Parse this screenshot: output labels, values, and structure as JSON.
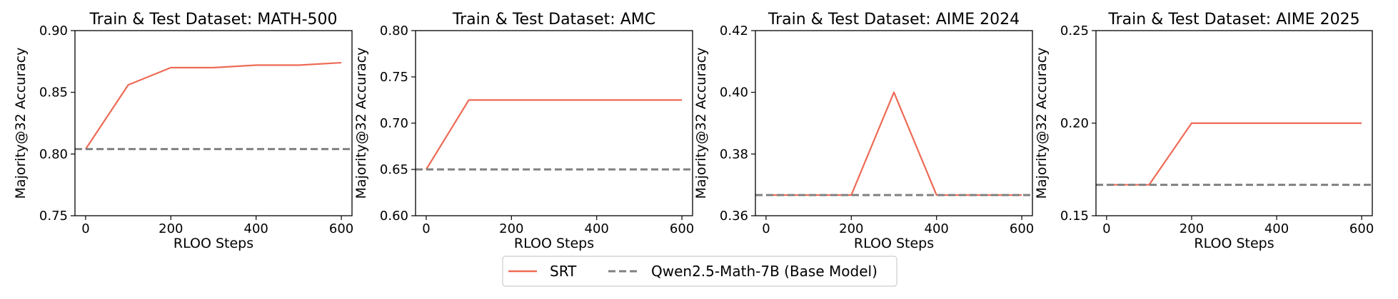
{
  "colors": {
    "srt": "#ee6a55",
    "baseline": "#808080",
    "axis": "#000000"
  },
  "legend": {
    "srt_label": "SRT",
    "baseline_label": "Qwen2.5-Math-7B (Base Model)"
  },
  "chart_data": [
    {
      "type": "line",
      "title": "Train & Test Dataset: MATH-500",
      "xlabel": "RLOO Steps",
      "ylabel": "Majority@32 Accuracy",
      "xlim": [
        -25,
        625
      ],
      "ylim": [
        0.75,
        0.9
      ],
      "xticks": [
        0,
        200,
        400,
        600
      ],
      "xtick_labels": [
        "0",
        "200",
        "400",
        "600"
      ],
      "yticks": [
        0.75,
        0.8,
        0.85,
        0.9
      ],
      "ytick_labels": [
        "0.75",
        "0.80",
        "0.85",
        "0.90"
      ],
      "grid": false,
      "series": [
        {
          "name": "SRT",
          "style": "solid",
          "x": [
            0,
            100,
            200,
            300,
            400,
            500,
            600
          ],
          "y": [
            0.804,
            0.856,
            0.87,
            0.87,
            0.872,
            0.872,
            0.874
          ]
        },
        {
          "name": "Qwen2.5-Math-7B (Base Model)",
          "style": "dashed",
          "x": [
            -25,
            625
          ],
          "y": [
            0.804,
            0.804
          ]
        }
      ]
    },
    {
      "type": "line",
      "title": "Train & Test Dataset: AMC",
      "xlabel": "RLOO Steps",
      "ylabel": "Majority@32 Accuracy",
      "xlim": [
        -25,
        625
      ],
      "ylim": [
        0.6,
        0.8
      ],
      "xticks": [
        0,
        200,
        400,
        600
      ],
      "xtick_labels": [
        "0",
        "200",
        "400",
        "600"
      ],
      "yticks": [
        0.6,
        0.65,
        0.7,
        0.75,
        0.8
      ],
      "ytick_labels": [
        "0.60",
        "0.65",
        "0.70",
        "0.75",
        "0.80"
      ],
      "grid": false,
      "series": [
        {
          "name": "SRT",
          "style": "solid",
          "x": [
            0,
            100,
            200,
            300,
            400,
            500,
            600
          ],
          "y": [
            0.65,
            0.725,
            0.725,
            0.725,
            0.725,
            0.725,
            0.725
          ]
        },
        {
          "name": "Qwen2.5-Math-7B (Base Model)",
          "style": "dashed",
          "x": [
            -25,
            625
          ],
          "y": [
            0.65,
            0.65
          ]
        }
      ]
    },
    {
      "type": "line",
      "title": "Train & Test Dataset: AIME 2024",
      "xlabel": "RLOO Steps",
      "ylabel": "Majority@32 Accuracy",
      "xlim": [
        -25,
        625
      ],
      "ylim": [
        0.36,
        0.42
      ],
      "xticks": [
        0,
        200,
        400,
        600
      ],
      "xtick_labels": [
        "0",
        "200",
        "400",
        "600"
      ],
      "yticks": [
        0.36,
        0.38,
        0.4,
        0.42
      ],
      "ytick_labels": [
        "0.36",
        "0.38",
        "0.40",
        "0.42"
      ],
      "grid": false,
      "series": [
        {
          "name": "SRT",
          "style": "solid",
          "x": [
            0,
            100,
            200,
            300,
            400,
            500,
            600
          ],
          "y": [
            0.3667,
            0.3667,
            0.3667,
            0.4,
            0.3667,
            0.3667,
            0.3667
          ]
        },
        {
          "name": "Qwen2.5-Math-7B (Base Model)",
          "style": "dashed",
          "x": [
            -25,
            625
          ],
          "y": [
            0.3667,
            0.3667
          ]
        }
      ]
    },
    {
      "type": "line",
      "title": "Train & Test Dataset: AIME 2025",
      "xlabel": "RLOO Steps",
      "ylabel": "Majority@32 Accuracy",
      "xlim": [
        -25,
        625
      ],
      "ylim": [
        0.15,
        0.25
      ],
      "xticks": [
        0,
        200,
        400,
        600
      ],
      "xtick_labels": [
        "0",
        "200",
        "400",
        "600"
      ],
      "yticks": [
        0.15,
        0.2,
        0.25
      ],
      "ytick_labels": [
        "0.15",
        "0.20",
        "0.25"
      ],
      "grid": false,
      "series": [
        {
          "name": "SRT",
          "style": "solid",
          "x": [
            0,
            100,
            200,
            300,
            400,
            500,
            600
          ],
          "y": [
            0.1667,
            0.1667,
            0.2,
            0.2,
            0.2,
            0.2,
            0.2
          ]
        },
        {
          "name": "Qwen2.5-Math-7B (Base Model)",
          "style": "dashed",
          "x": [
            -25,
            625
          ],
          "y": [
            0.1667,
            0.1667
          ]
        }
      ]
    }
  ]
}
